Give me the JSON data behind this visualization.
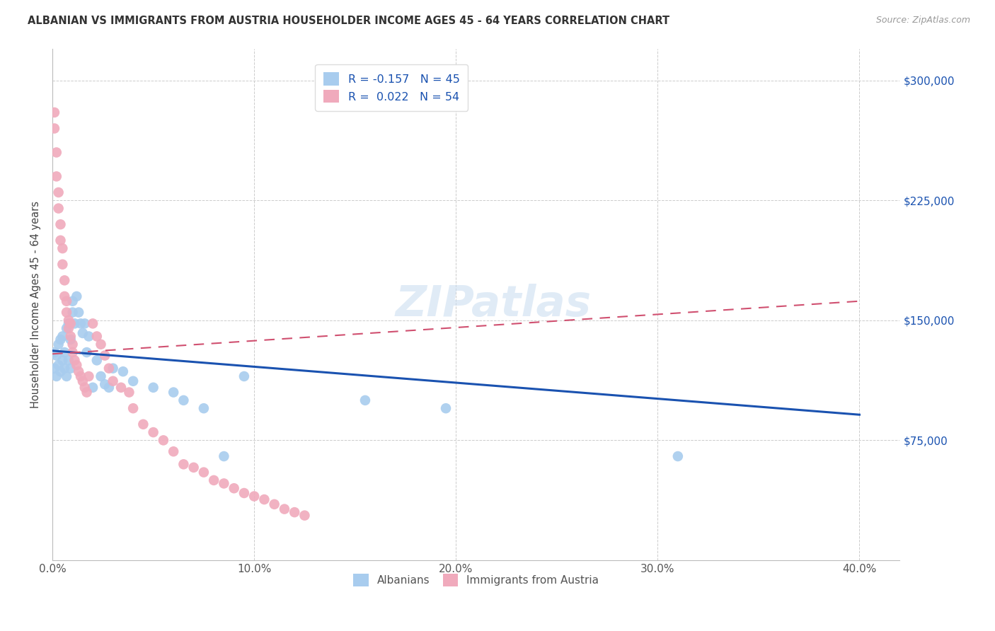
{
  "title": "ALBANIAN VS IMMIGRANTS FROM AUSTRIA HOUSEHOLDER INCOME AGES 45 - 64 YEARS CORRELATION CHART",
  "source": "Source: ZipAtlas.com",
  "ylabel": "Householder Income Ages 45 - 64 years",
  "xlim": [
    0,
    0.42
  ],
  "ylim": [
    0,
    320000
  ],
  "blue_color": "#A8CCEE",
  "pink_color": "#F0AABC",
  "blue_line_color": "#1A52B0",
  "pink_line_color": "#D05070",
  "watermark_text": "ZIPatlas",
  "legend_label1": "R = -0.157   N = 45",
  "legend_label2": "R =  0.022   N = 54",
  "legend_bottom1": "Albanians",
  "legend_bottom2": "Immigrants from Austria",
  "blue_line_x0": 0.0,
  "blue_line_y0": 131000,
  "blue_line_x1": 0.4,
  "blue_line_y1": 91000,
  "pink_line_x0": 0.0,
  "pink_line_y0": 129000,
  "pink_line_x1": 0.4,
  "pink_line_y1": 162000,
  "blue_x": [
    0.001,
    0.001,
    0.002,
    0.002,
    0.003,
    0.003,
    0.004,
    0.004,
    0.005,
    0.005,
    0.006,
    0.006,
    0.007,
    0.007,
    0.008,
    0.008,
    0.009,
    0.009,
    0.01,
    0.01,
    0.011,
    0.012,
    0.013,
    0.014,
    0.015,
    0.016,
    0.017,
    0.018,
    0.02,
    0.022,
    0.024,
    0.026,
    0.028,
    0.03,
    0.035,
    0.04,
    0.05,
    0.06,
    0.065,
    0.075,
    0.085,
    0.095,
    0.155,
    0.195,
    0.31
  ],
  "blue_y": [
    120000,
    130000,
    115000,
    128000,
    122000,
    135000,
    118000,
    138000,
    125000,
    140000,
    130000,
    120000,
    145000,
    115000,
    148000,
    125000,
    138000,
    120000,
    162000,
    155000,
    148000,
    165000,
    155000,
    148000,
    142000,
    148000,
    130000,
    140000,
    108000,
    125000,
    115000,
    110000,
    108000,
    120000,
    118000,
    112000,
    108000,
    105000,
    100000,
    95000,
    65000,
    115000,
    100000,
    95000,
    65000
  ],
  "pink_x": [
    0.001,
    0.001,
    0.002,
    0.002,
    0.003,
    0.003,
    0.004,
    0.004,
    0.005,
    0.005,
    0.006,
    0.006,
    0.007,
    0.007,
    0.008,
    0.008,
    0.009,
    0.009,
    0.01,
    0.01,
    0.011,
    0.012,
    0.013,
    0.014,
    0.015,
    0.016,
    0.017,
    0.018,
    0.02,
    0.022,
    0.024,
    0.026,
    0.028,
    0.03,
    0.034,
    0.038,
    0.04,
    0.045,
    0.05,
    0.055,
    0.06,
    0.065,
    0.07,
    0.075,
    0.08,
    0.085,
    0.09,
    0.095,
    0.1,
    0.105,
    0.11,
    0.115,
    0.12,
    0.125
  ],
  "pink_y": [
    270000,
    280000,
    255000,
    240000,
    230000,
    220000,
    210000,
    200000,
    195000,
    185000,
    175000,
    165000,
    162000,
    155000,
    150000,
    145000,
    148000,
    140000,
    135000,
    130000,
    125000,
    122000,
    118000,
    115000,
    112000,
    108000,
    105000,
    115000,
    148000,
    140000,
    135000,
    128000,
    120000,
    112000,
    108000,
    105000,
    95000,
    85000,
    80000,
    75000,
    68000,
    60000,
    58000,
    55000,
    50000,
    48000,
    45000,
    42000,
    40000,
    38000,
    35000,
    32000,
    30000,
    28000
  ]
}
